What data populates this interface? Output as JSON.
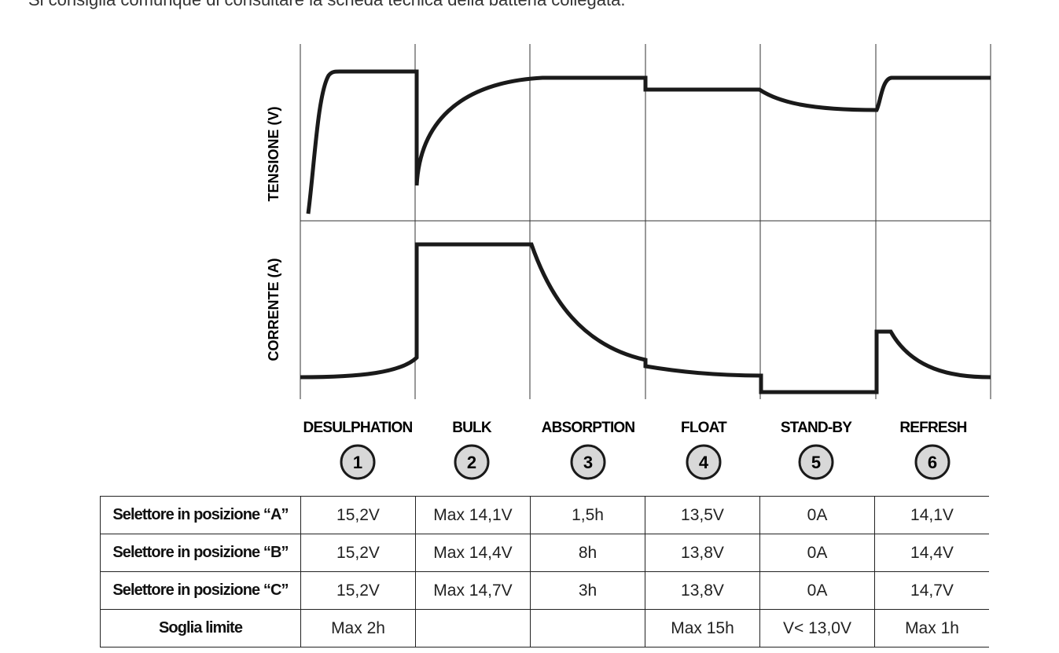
{
  "intro_text": "Si consiglia comunque di consultare la scheda tecnica della batteria collegata.",
  "diagram": {
    "voltage_label": "TENSIONE (V)",
    "current_label": "CORRENTE (A)",
    "phases": [
      {
        "number": "1",
        "name": "DESULPHATION"
      },
      {
        "number": "2",
        "name": "BULK"
      },
      {
        "number": "3",
        "name": "ABSORPTION"
      },
      {
        "number": "4",
        "name": "FLOAT"
      },
      {
        "number": "5",
        "name": "STAND-BY"
      },
      {
        "number": "6",
        "name": "REFRESH"
      }
    ],
    "colors": {
      "line": "#1a1a1a",
      "circle_fill": "#d8d8d8",
      "grid": "#333333"
    }
  },
  "table": {
    "rows": [
      {
        "label": "Selettore in posizione “A”",
        "values": [
          "15,2V",
          "Max 14,1V",
          "1,5h",
          "13,5V",
          "0A",
          "14,1V"
        ]
      },
      {
        "label": "Selettore in posizione “B”",
        "values": [
          "15,2V",
          "Max 14,4V",
          "8h",
          "13,8V",
          "0A",
          "14,4V"
        ]
      },
      {
        "label": "Selettore in posizione “C”",
        "values": [
          "15,2V",
          "Max 14,7V",
          "3h",
          "13,8V",
          "0A",
          "14,7V"
        ]
      },
      {
        "label": "Soglia limite",
        "values": [
          "Max 2h",
          "",
          "",
          "Max 15h",
          "V< 13,0V",
          "Max 1h"
        ]
      }
    ]
  }
}
